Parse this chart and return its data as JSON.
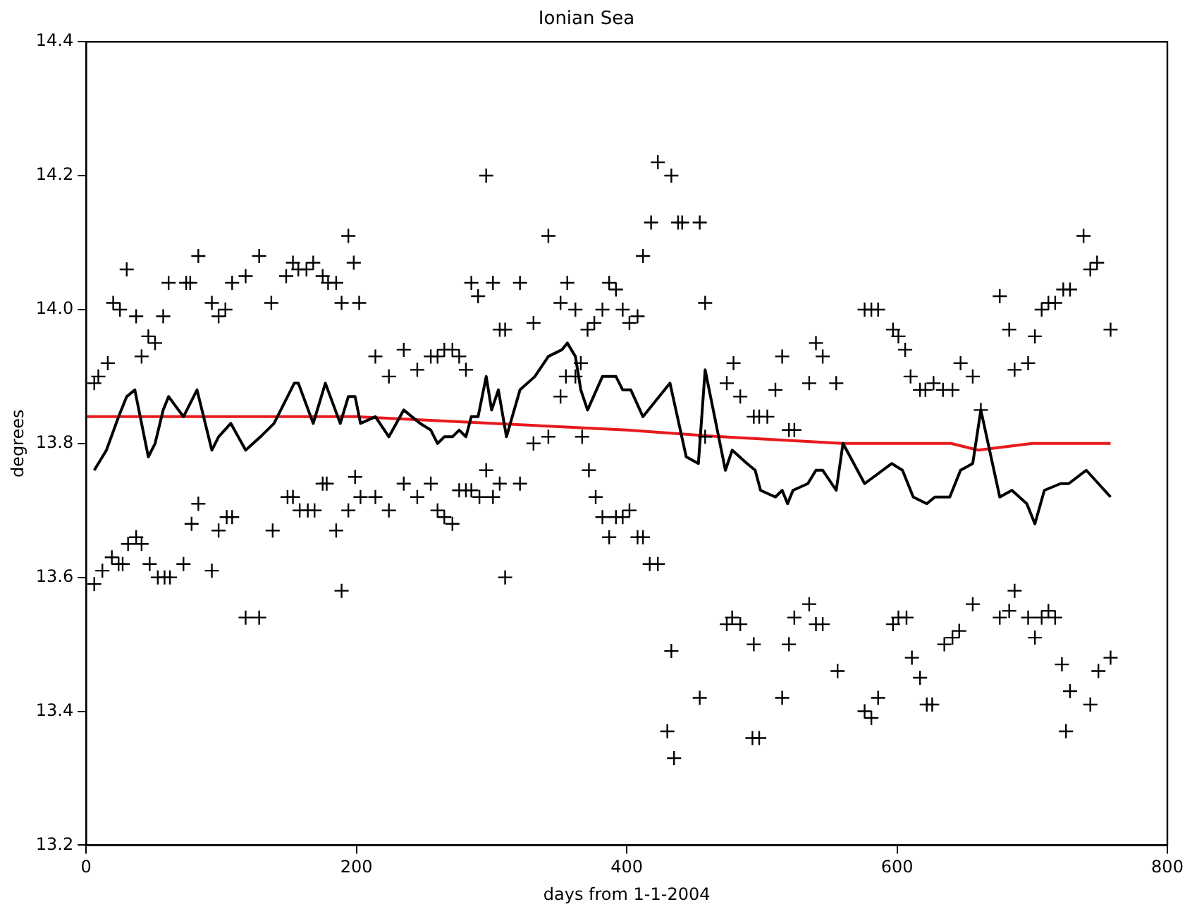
{
  "chart_data": {
    "type": "scatter",
    "title": "Ionian Sea",
    "xlabel": "days from 1-1-2004",
    "ylabel": "degrees",
    "xlim": [
      0,
      800
    ],
    "xticks": [
      0,
      200,
      400,
      600,
      800
    ],
    "ylim": [
      13.2,
      14.4
    ],
    "yticks": [
      13.2,
      13.4,
      13.6,
      13.8,
      {
        "value": 14,
        "label": "14.0"
      },
      14.2,
      14.4
    ],
    "grid": false,
    "legend": false,
    "series": [
      {
        "type": "scatter",
        "marker": "cross",
        "color": "#000000",
        "x": [
          30,
          20,
          25,
          37,
          16,
          9,
          6,
          41,
          46,
          51,
          57,
          61,
          74,
          77,
          83,
          93,
          98,
          103,
          108,
          118,
          128,
          137,
          148,
          153,
          157,
          163,
          168,
          175,
          179,
          185,
          189,
          194,
          198,
          202,
          296,
          342,
          285,
          290,
          301,
          321,
          356,
          351,
          362,
          387,
          392,
          382,
          397,
          402,
          306,
          310,
          331,
          371,
          376,
          214,
          224,
          235,
          245,
          255,
          260,
          265,
          271,
          276,
          281,
          351,
          355,
          362,
          366,
          331,
          342,
          367,
          6,
          12,
          19,
          24,
          27,
          31,
          37,
          41,
          47,
          53,
          58,
          62,
          72,
          78,
          83,
          93,
          98,
          104,
          108,
          118,
          128,
          138,
          149,
          153,
          158,
          164,
          169,
          175,
          178,
          185,
          189,
          194,
          199,
          203,
          214,
          224,
          235,
          245,
          255,
          260,
          265,
          271,
          276,
          281,
          285,
          291,
          296,
          301,
          306,
          321,
          310,
          372,
          377,
          382,
          387,
          392,
          397,
          402,
          423,
          433,
          418,
          438,
          441,
          454,
          412,
          458,
          408,
          576,
          581,
          586,
          597,
          601,
          540,
          545,
          515,
          479,
          474,
          484,
          510,
          535,
          555,
          494,
          498,
          504,
          520,
          524,
          458,
          408,
          412,
          417,
          423,
          433,
          430,
          435,
          454,
          474,
          478,
          484,
          494,
          520,
          515,
          493,
          498,
          524,
          535,
          540,
          545,
          556,
          576,
          581,
          586,
          597,
          601,
          738,
          743,
          748,
          676,
          723,
          728,
          712,
          717,
          707,
          683,
          702,
          758,
          606,
          697,
          687,
          647,
          656,
          610,
          617,
          621,
          627,
          634,
          641,
          662,
          607,
          687,
          656,
          683,
          676,
          697,
          707,
          712,
          717,
          702,
          635,
          641,
          646,
          611,
          617,
          622,
          626,
          722,
          728,
          725,
          743,
          749,
          758
        ],
        "values": [
          14.06,
          14.01,
          14.0,
          13.99,
          13.92,
          13.9,
          13.89,
          13.93,
          13.96,
          13.95,
          13.99,
          14.04,
          14.04,
          14.04,
          14.08,
          14.01,
          13.99,
          14.0,
          14.04,
          14.05,
          14.08,
          14.01,
          14.05,
          14.07,
          14.06,
          14.06,
          14.07,
          14.05,
          14.04,
          14.04,
          14.01,
          14.11,
          14.07,
          14.01,
          14.2,
          14.11,
          14.04,
          14.02,
          14.04,
          14.04,
          14.04,
          14.01,
          14.0,
          14.04,
          14.03,
          14.0,
          14.0,
          13.98,
          13.97,
          13.97,
          13.98,
          13.97,
          13.98,
          13.93,
          13.9,
          13.94,
          13.91,
          13.93,
          13.93,
          13.94,
          13.94,
          13.93,
          13.91,
          13.87,
          13.9,
          13.9,
          13.92,
          13.8,
          13.81,
          13.81,
          13.59,
          13.61,
          13.63,
          13.62,
          13.62,
          13.65,
          13.66,
          13.65,
          13.62,
          13.6,
          13.6,
          13.6,
          13.62,
          13.68,
          13.71,
          13.61,
          13.67,
          13.69,
          13.69,
          13.54,
          13.54,
          13.67,
          13.72,
          13.72,
          13.7,
          13.7,
          13.7,
          13.74,
          13.74,
          13.67,
          13.58,
          13.7,
          13.75,
          13.72,
          13.72,
          13.7,
          13.74,
          13.72,
          13.74,
          13.7,
          13.69,
          13.68,
          13.73,
          13.73,
          13.73,
          13.72,
          13.76,
          13.72,
          13.74,
          13.74,
          13.6,
          13.76,
          13.72,
          13.69,
          13.66,
          13.69,
          13.69,
          13.7,
          14.22,
          14.2,
          14.13,
          14.13,
          14.13,
          14.13,
          14.08,
          14.01,
          13.99,
          14.0,
          14.0,
          14.0,
          13.97,
          13.96,
          13.95,
          13.93,
          13.93,
          13.92,
          13.89,
          13.87,
          13.88,
          13.89,
          13.89,
          13.84,
          13.84,
          13.84,
          13.82,
          13.82,
          13.81,
          13.66,
          13.66,
          13.62,
          13.62,
          13.49,
          13.37,
          13.33,
          13.42,
          13.53,
          13.54,
          13.53,
          13.5,
          13.5,
          13.42,
          13.36,
          13.36,
          13.54,
          13.56,
          13.53,
          13.53,
          13.46,
          13.4,
          13.39,
          13.42,
          13.53,
          13.54,
          14.11,
          14.06,
          14.07,
          14.02,
          14.03,
          14.03,
          14.01,
          14.01,
          14.0,
          13.97,
          13.96,
          13.97,
          13.94,
          13.92,
          13.91,
          13.92,
          13.9,
          13.9,
          13.88,
          13.88,
          13.89,
          13.88,
          13.88,
          13.85,
          13.54,
          13.58,
          13.56,
          13.55,
          13.54,
          13.54,
          13.54,
          13.55,
          13.54,
          13.51,
          13.5,
          13.51,
          13.52,
          13.48,
          13.45,
          13.41,
          13.41,
          13.47,
          13.43,
          13.37,
          13.41,
          13.46,
          13.48
        ]
      },
      {
        "type": "line",
        "marker": "none",
        "line_style": "solid",
        "color": "#000000",
        "x": [
          6,
          15,
          24,
          30,
          36,
          46,
          51,
          57,
          61,
          72,
          82,
          93,
          98,
          107,
          118,
          129,
          139,
          154,
          157,
          168,
          177,
          188,
          194,
          199,
          203,
          214,
          224,
          235,
          247,
          255,
          260,
          265,
          271,
          276,
          281,
          285,
          290,
          296,
          300,
          305,
          311,
          321,
          332,
          342,
          352,
          356,
          362,
          366,
          371,
          382,
          392,
          397,
          403,
          412,
          432,
          444,
          453,
          458,
          468,
          473,
          478,
          489,
          495,
          499,
          510,
          515,
          519,
          523,
          534,
          540,
          545,
          555,
          560,
          576,
          596,
          604,
          612,
          622,
          628,
          639,
          647,
          656,
          662,
          676,
          685,
          696,
          702,
          709,
          721,
          727,
          740,
          758
        ],
        "values": [
          13.76,
          13.79,
          13.84,
          13.87,
          13.88,
          13.78,
          13.8,
          13.85,
          13.87,
          13.84,
          13.88,
          13.79,
          13.81,
          13.83,
          13.79,
          13.81,
          13.83,
          13.89,
          13.89,
          13.83,
          13.89,
          13.83,
          13.87,
          13.87,
          13.83,
          13.84,
          13.81,
          13.85,
          13.83,
          13.82,
          13.8,
          13.81,
          13.81,
          13.82,
          13.81,
          13.84,
          13.84,
          13.9,
          13.85,
          13.88,
          13.81,
          13.88,
          13.9,
          13.93,
          13.94,
          13.95,
          13.93,
          13.88,
          13.85,
          13.9,
          13.9,
          13.88,
          13.88,
          13.84,
          13.89,
          13.78,
          13.77,
          13.91,
          13.81,
          13.76,
          13.79,
          13.77,
          13.76,
          13.73,
          13.72,
          13.73,
          13.71,
          13.73,
          13.74,
          13.76,
          13.76,
          13.73,
          13.8,
          13.74,
          13.77,
          13.76,
          13.72,
          13.71,
          13.72,
          13.72,
          13.76,
          13.77,
          13.85,
          13.72,
          13.73,
          13.71,
          13.68,
          13.73,
          13.74,
          13.74,
          13.76,
          13.72
        ]
      },
      {
        "type": "line",
        "marker": "none",
        "line_style": "solid",
        "color": "#e8191c",
        "x": [
          0,
          100,
          200,
          300,
          400,
          470,
          560,
          640,
          660,
          700,
          758
        ],
        "values": [
          13.84,
          13.84,
          13.84,
          13.83,
          13.82,
          13.81,
          13.8,
          13.8,
          13.79,
          13.8,
          13.8
        ]
      }
    ]
  }
}
